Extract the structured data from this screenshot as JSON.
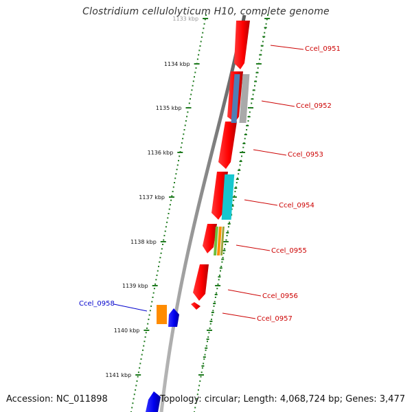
{
  "title": "Clostridium cellulolyticum H10, complete genome",
  "footer": {
    "accession_label": "Accession:",
    "accession": "NC_011898",
    "topology_label": "Topology:",
    "topology": "circular;",
    "length_label": "Length:",
    "length": "4,068,724 bp;",
    "genes_label": "Genes:",
    "genes": "3,477"
  },
  "colors": {
    "backbone": "#8c8c8c",
    "tick": "#1e7a1e",
    "forward_gene": "#ff0000",
    "reverse_gene": "#0000ee",
    "right_label": "#cc0000",
    "left_label": "#0000cc"
  },
  "ticks": [
    {
      "label": "1133 kbp"
    },
    {
      "label": "1134 kbp"
    },
    {
      "label": "1135 kbp"
    },
    {
      "label": "1136 kbp"
    },
    {
      "label": "1137 kbp"
    },
    {
      "label": "1138 kbp"
    },
    {
      "label": "1139 kbp"
    },
    {
      "label": "1140 kbp"
    },
    {
      "label": "1141 kbp"
    }
  ],
  "gene_labels_right": [
    {
      "name": "Ccel_0951"
    },
    {
      "name": "Ccel_0952"
    },
    {
      "name": "Ccel_0953"
    },
    {
      "name": "Ccel_0954"
    },
    {
      "name": "Ccel_0955"
    },
    {
      "name": "Ccel_0956"
    },
    {
      "name": "Ccel_0957"
    }
  ],
  "gene_labels_left": [
    {
      "name": "Ccel_0958"
    }
  ],
  "domain_colors": {
    "blue_gray": "#4f7fb5",
    "gray": "#a9a9a9",
    "cyan": "#17c7cf",
    "green": "#6dbf3d",
    "orange": "#ff8c00",
    "olive": "#9aa53a"
  }
}
